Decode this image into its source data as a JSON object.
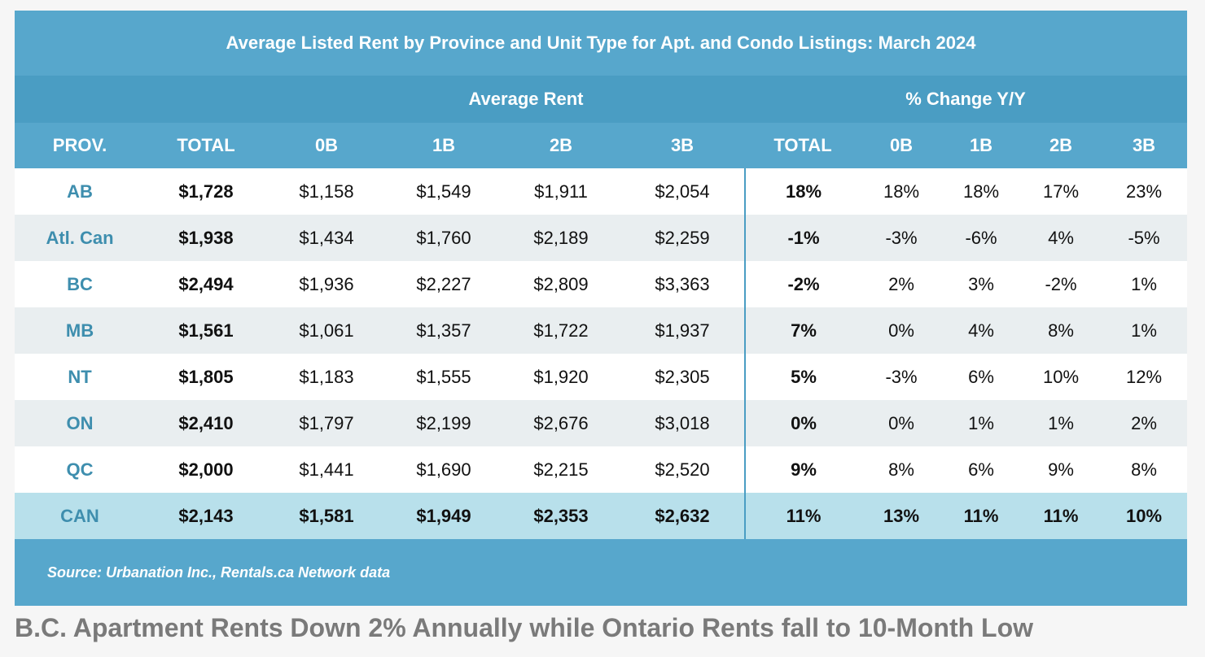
{
  "chart_data": {
    "type": "table",
    "title": "Average Listed Rent by Province and Unit Type for Apt. and Condo Listings: March 2024",
    "column_groups": [
      {
        "label": "Average Rent"
      },
      {
        "label": "% Change Y/Y"
      }
    ],
    "columns": [
      "PROV.",
      "TOTAL",
      "0B",
      "1B",
      "2B",
      "3B",
      "TOTAL",
      "0B",
      "1B",
      "2B",
      "3B"
    ],
    "rows": [
      [
        "AB",
        "$1,728",
        "$1,158",
        "$1,549",
        "$1,911",
        "$2,054",
        "18%",
        "18%",
        "18%",
        "17%",
        "23%"
      ],
      [
        "Atl. Can",
        "$1,938",
        "$1,434",
        "$1,760",
        "$2,189",
        "$2,259",
        "-1%",
        "-3%",
        "-6%",
        "4%",
        "-5%"
      ],
      [
        "BC",
        "$2,494",
        "$1,936",
        "$2,227",
        "$2,809",
        "$3,363",
        "-2%",
        "2%",
        "3%",
        "-2%",
        "1%"
      ],
      [
        "MB",
        "$1,561",
        "$1,061",
        "$1,357",
        "$1,722",
        "$1,937",
        "7%",
        "0%",
        "4%",
        "8%",
        "1%"
      ],
      [
        "NT",
        "$1,805",
        "$1,183",
        "$1,555",
        "$1,920",
        "$2,305",
        "5%",
        "-3%",
        "6%",
        "10%",
        "12%"
      ],
      [
        "ON",
        "$2,410",
        "$1,797",
        "$2,199",
        "$2,676",
        "$3,018",
        "0%",
        "0%",
        "1%",
        "1%",
        "2%"
      ],
      [
        "QC",
        "$2,000",
        "$1,441",
        "$1,690",
        "$2,215",
        "$2,520",
        "9%",
        "8%",
        "6%",
        "9%",
        "8%"
      ],
      [
        "CAN",
        "$2,143",
        "$1,581",
        "$1,949",
        "$2,353",
        "$2,632",
        "11%",
        "13%",
        "11%",
        "11%",
        "10%"
      ]
    ],
    "source": "Source: Urbanation Inc., Rentals.ca Network data"
  },
  "headline": "B.C. Apartment Rents Down 2% Annually while Ontario Rents fall to 10-Month Low",
  "colors": {
    "header_blue": "#57a7cc",
    "group_blue": "#4a9dc3",
    "alt_row": "#e9eef0",
    "total_row": "#b8e0eb",
    "prov_text": "#3e8eae"
  }
}
